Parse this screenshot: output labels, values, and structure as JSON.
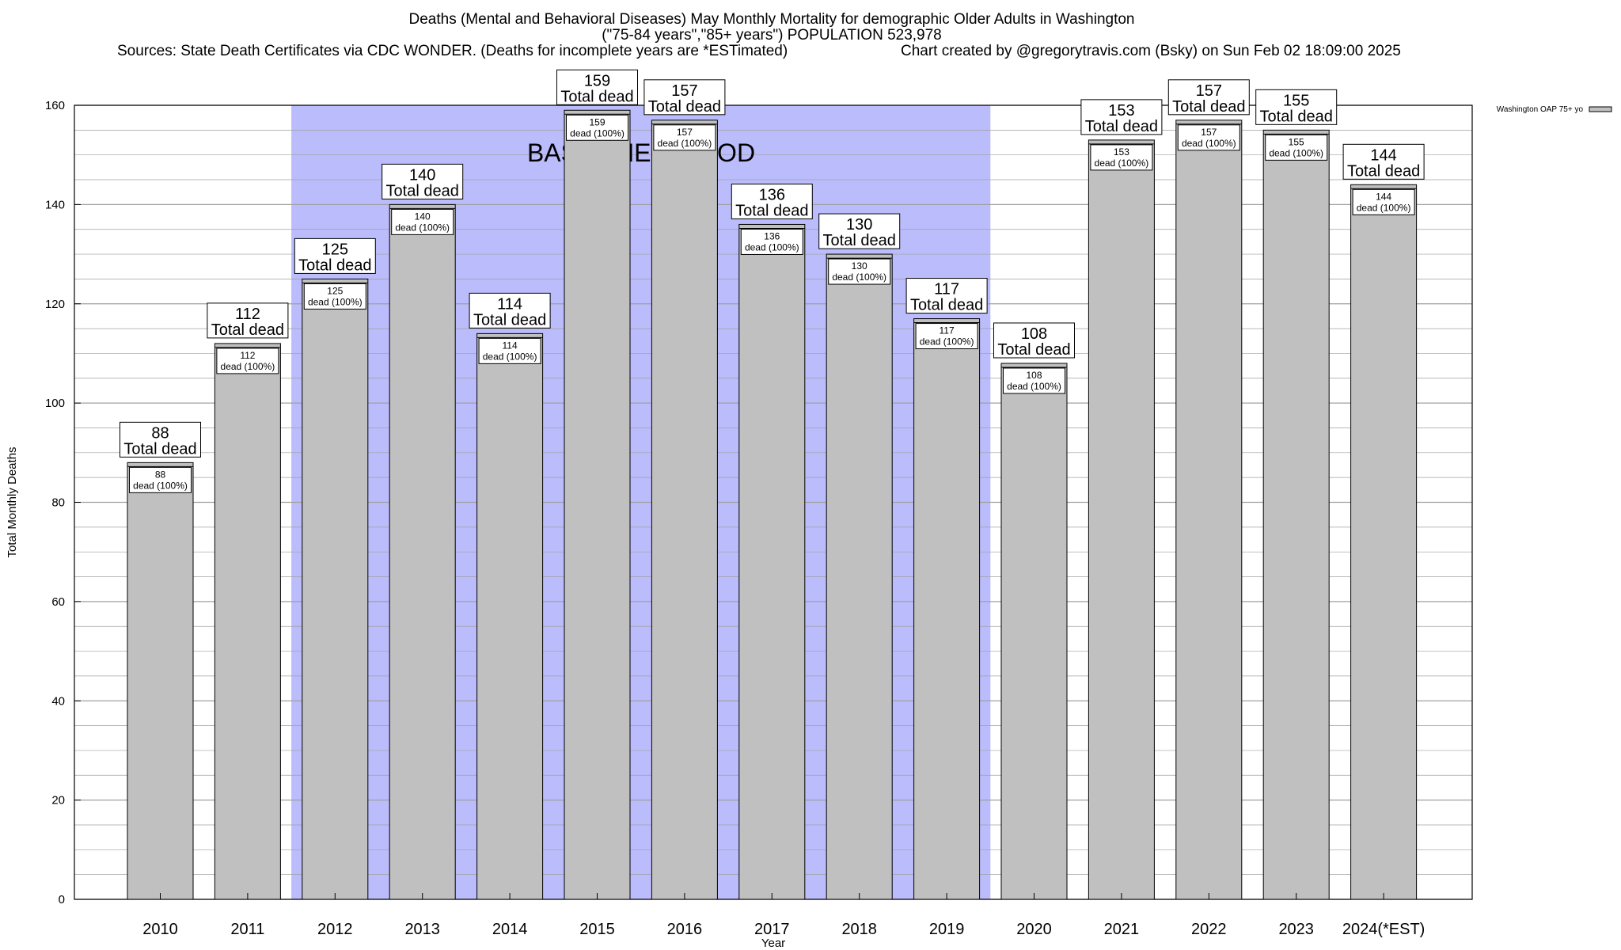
{
  "title": {
    "line1": "Deaths (Mental and Behavioral Diseases) May Monthly Mortality for demographic Older Adults in Washington",
    "line2": "(\"75-84 years\",\"85+ years\") POPULATION 523,978",
    "sources": "Sources: State Death Certificates via CDC WONDER. (Deaths for incomplete years are *ESTimated)",
    "credit": "Chart created by @gregorytravis.com (Bsky) on Sun Feb 02 18:09:00 2025"
  },
  "colors": {
    "bar": "#c0c0c0",
    "baseline_band": "#bbbcfb",
    "grid": "#a0a0a0"
  },
  "chart_data": {
    "type": "bar",
    "categories": [
      "2010",
      "2011",
      "2012",
      "2013",
      "2014",
      "2015",
      "2016",
      "2017",
      "2018",
      "2019",
      "2020",
      "2021",
      "2022",
      "2023",
      "2024(*EST)"
    ],
    "series": [
      {
        "name": "Washington OAP 75+ yo",
        "values": [
          88,
          112,
          125,
          140,
          114,
          159,
          157,
          136,
          130,
          117,
          108,
          153,
          157,
          155,
          144
        ]
      }
    ],
    "top_label_suffix": "Total dead",
    "inner_label_suffix": "dead (100%)",
    "xlabel": "Year",
    "ylabel": "Total Monthly Deaths",
    "ylim": [
      0,
      160
    ],
    "yticks": [
      0,
      20,
      40,
      60,
      80,
      100,
      120,
      140,
      160
    ],
    "grid": true,
    "baseline_period": {
      "label": "BASELINE PERIOD",
      "start": "2012",
      "end": "2019"
    },
    "legend_position": "top-right"
  }
}
